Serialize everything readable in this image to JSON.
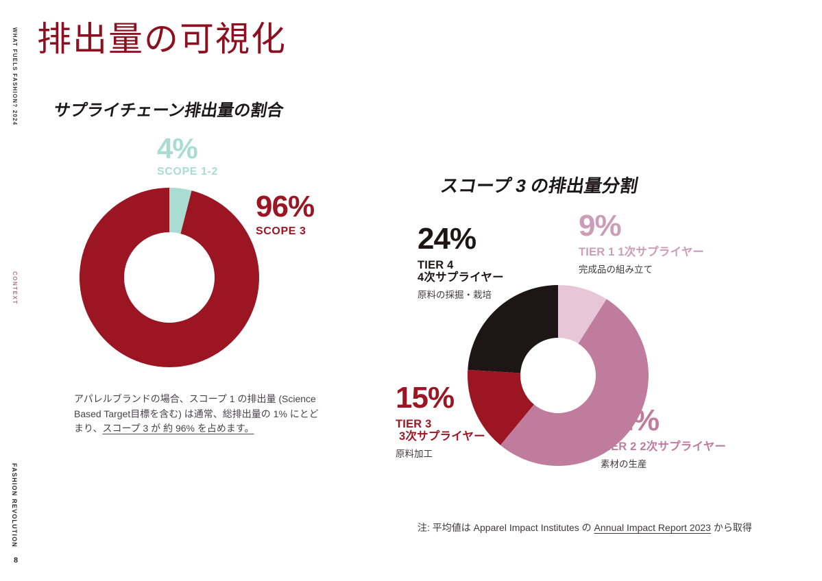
{
  "sidebar": {
    "top_label": "WHAT FUELS FASHION? 2024",
    "section_label": "CONTEXT",
    "brand_label": "FASHION REVOLUTION",
    "page_number": "8"
  },
  "header": {
    "title": "排出量の可視化"
  },
  "supply_chain_chart": {
    "title": "サプライチェーン排出量の割合",
    "scope12_pct": "4%",
    "scope12_label": "SCOPE 1-2",
    "scope3_pct": "96%",
    "scope3_label": "SCOPE 3",
    "description_line1": "アパレルブランドの場合、スコープ 1 の排出量 (Science",
    "description_line2": "Based Target目標を含む) は通常、総排出量の 1% にとど",
    "description_line3_prefix": "まり、",
    "description_line3_underlined": "スコープ 3 が 約 96% を占めます。"
  },
  "scope3_chart": {
    "title": "スコープ 3 の排出量分割",
    "tier1_pct": "9%",
    "tier1_label": "TIER 1 1次サプライヤー",
    "tier1_sub": "完成品の組み立て",
    "tier2_pct": "52%",
    "tier2_label": "TIER 2 2次サプライヤー",
    "tier2_sub": "素材の生産",
    "tier3_pct": "15%",
    "tier3_label_line1": "TIER 3",
    "tier3_label_line2": "3次サプライヤー",
    "tier3_sub": "原料加工",
    "tier4_pct": "24%",
    "tier4_label_line1": "TIER 4",
    "tier4_label_line2": "4次サプライヤー",
    "tier4_sub": "原料の採掘・栽培"
  },
  "footnote": {
    "prefix": "注: 平均値は Apparel Impact Institutes の ",
    "link": "Annual Impact Report 2023",
    "suffix": " から取得"
  },
  "colors": {
    "dark_red": "#9b1622",
    "title_red": "#8c1120",
    "teal": "#a9dcd2",
    "light_pink": "#e7c7d7",
    "pink_label": "#cb9db6",
    "mauve": "#bf7c9d",
    "near_black": "#1e1517",
    "body_gray": "#46424a"
  },
  "chart_data": [
    {
      "type": "pie",
      "donut": true,
      "title": "サプライチェーン排出量の割合",
      "start": "top",
      "direction": "clockwise",
      "legend_position": "around",
      "segments": [
        {
          "name": "scope-1-2",
          "label": "SCOPE 1-2",
          "value": 4,
          "color": "#a9dcd2"
        },
        {
          "name": "scope-3",
          "label": "SCOPE 3",
          "value": 96,
          "color": "#9b1622"
        }
      ]
    },
    {
      "type": "pie",
      "donut": true,
      "title": "スコープ 3 の排出量分割",
      "start": "top",
      "direction": "clockwise",
      "legend_position": "around",
      "segments": [
        {
          "name": "tier-1",
          "label": "TIER 1 1次サプライヤー",
          "sublabel": "完成品の組み立て",
          "value": 9,
          "color": "#e7c7d7"
        },
        {
          "name": "tier-2",
          "label": "TIER 2 2次サプライヤー",
          "sublabel": "素材の生産",
          "value": 52,
          "color": "#bf7c9d"
        },
        {
          "name": "tier-3",
          "label": "TIER 3 3次サプライヤー",
          "sublabel": "原料加工",
          "value": 15,
          "color": "#9b1622"
        },
        {
          "name": "tier-4",
          "label": "TIER 4 4次サプライヤー",
          "sublabel": "原料の採掘・栽培",
          "value": 24,
          "color": "#1e1517"
        }
      ]
    }
  ]
}
